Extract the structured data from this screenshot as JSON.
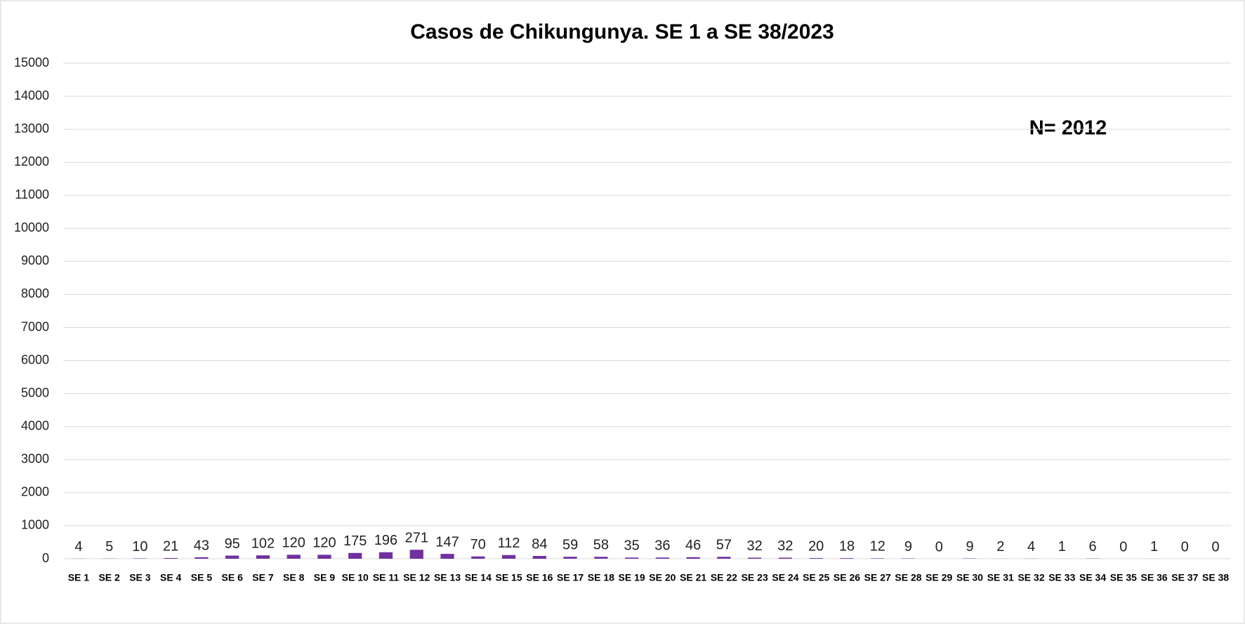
{
  "chart_data": {
    "type": "bar",
    "title": "Casos de Chikungunya. SE  1 a SE 38/2023",
    "annotation": "N= 2012",
    "categories": [
      "SE 1",
      "SE 2",
      "SE 3",
      "SE 4",
      "SE 5",
      "SE 6",
      "SE 7",
      "SE 8",
      "SE 9",
      "SE 10",
      "SE 11",
      "SE 12",
      "SE 13",
      "SE 14",
      "SE 15",
      "SE 16",
      "SE 17",
      "SE 18",
      "SE 19",
      "SE 20",
      "SE 21",
      "SE 22",
      "SE 23",
      "SE 24",
      "SE 25",
      "SE 26",
      "SE 27",
      "SE 28",
      "SE 29",
      "SE 30",
      "SE 31",
      "SE 32",
      "SE 33",
      "SE 34",
      "SE 35",
      "SE 36",
      "SE 37",
      "SE 38"
    ],
    "values": [
      4,
      5,
      10,
      21,
      43,
      95,
      102,
      120,
      120,
      175,
      196,
      271,
      147,
      70,
      112,
      84,
      59,
      58,
      35,
      36,
      46,
      57,
      32,
      32,
      20,
      18,
      12,
      9,
      0,
      9,
      2,
      4,
      1,
      6,
      0,
      1,
      0,
      0
    ],
    "color": "#7030a0",
    "ylim": [
      0,
      15000
    ],
    "yticks": [
      0,
      1000,
      2000,
      3000,
      4000,
      5000,
      6000,
      7000,
      8000,
      9000,
      10000,
      11000,
      12000,
      13000,
      14000,
      15000
    ],
    "grid": true
  }
}
